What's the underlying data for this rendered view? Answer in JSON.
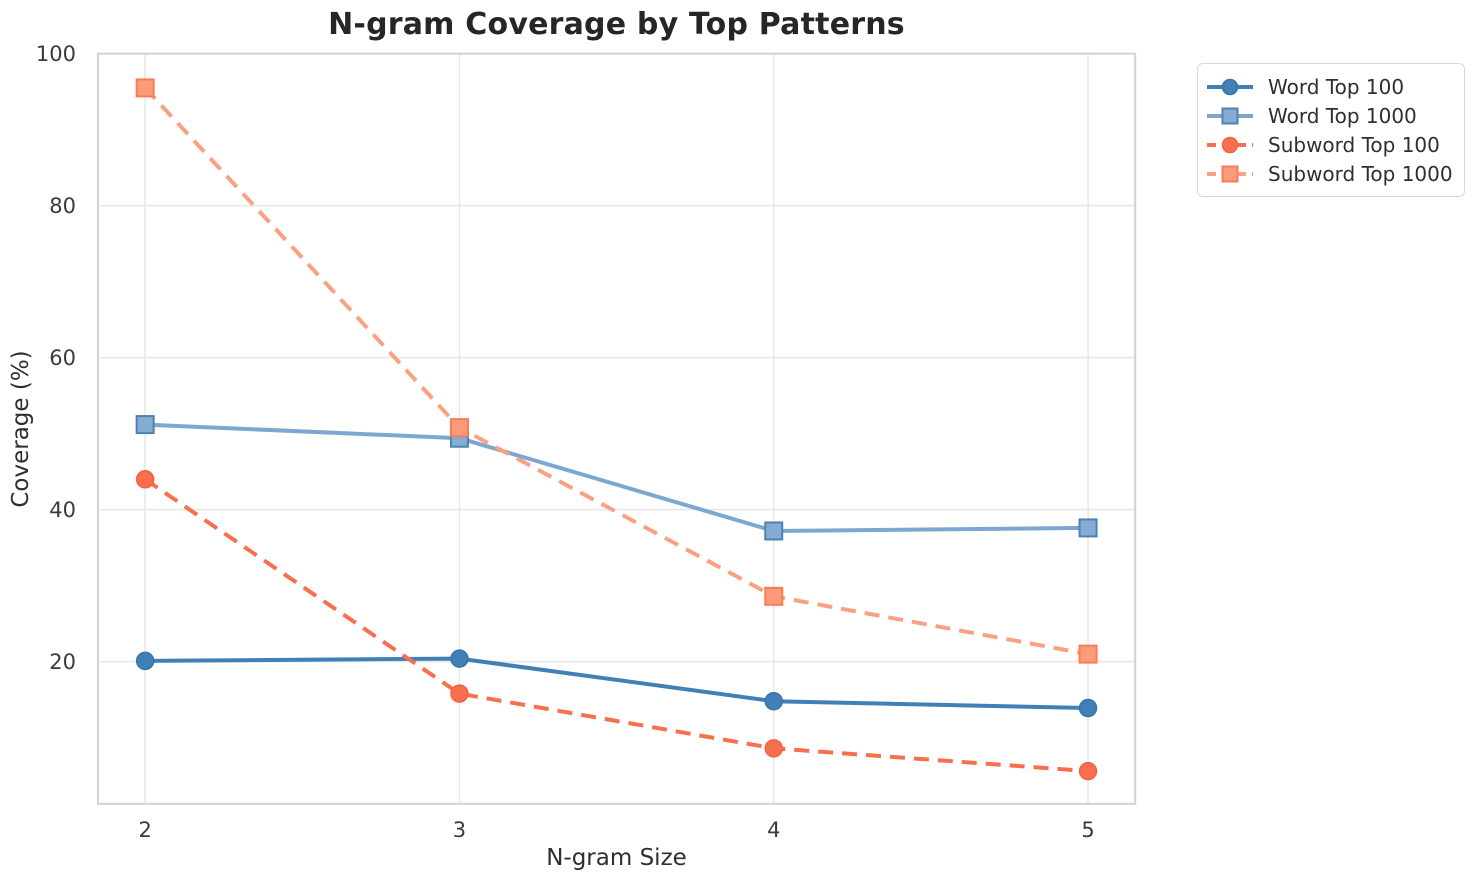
{
  "title": "N-gram Coverage by Top Patterns",
  "chart_data": {
    "type": "line",
    "title": "N-gram Coverage by Top Patterns",
    "xlabel": "N-gram Size",
    "ylabel": "Coverage (%)",
    "x": [
      2,
      3,
      4,
      5
    ],
    "xticks": [
      "2",
      "3",
      "4",
      "5"
    ],
    "yticks": [
      20,
      40,
      60,
      80,
      100
    ],
    "xlim": [
      1.85,
      5.15
    ],
    "ylim": [
      1.3,
      100.0
    ],
    "grid": true,
    "legend_position": "outside-top-right",
    "series": [
      {
        "name": "Word Top 100",
        "values": [
          20.1,
          20.4,
          14.8,
          13.9
        ],
        "color": "#4180B6",
        "marker_face": "#4180B6",
        "marker_edge": "#3A74A8",
        "line_style": "solid",
        "marker": "circle"
      },
      {
        "name": "Word Top 1000",
        "values": [
          51.2,
          49.4,
          37.2,
          37.6
        ],
        "color": "#7CA7CF",
        "marker_face": "#85ADD3",
        "marker_edge": "#4E82B2",
        "line_style": "solid",
        "marker": "square"
      },
      {
        "name": "Subword Top 100",
        "values": [
          44.0,
          15.8,
          8.6,
          5.6
        ],
        "color": "#F96F4D",
        "marker_face": "#F96F4D",
        "marker_edge": "#F26344",
        "line_style": "dashed",
        "marker": "circle"
      },
      {
        "name": "Subword Top 1000",
        "values": [
          95.5,
          50.8,
          28.6,
          21.0
        ],
        "color": "#FBA183",
        "marker_face": "#FA9C7A",
        "marker_edge": "#F87D56",
        "line_style": "dashed",
        "marker": "square"
      }
    ],
    "style": {
      "grid_color": "#e9e9e9",
      "spine_color": "#d2d2d2",
      "tick_label_color": "#3a3a3a",
      "title_color": "#262626"
    }
  }
}
